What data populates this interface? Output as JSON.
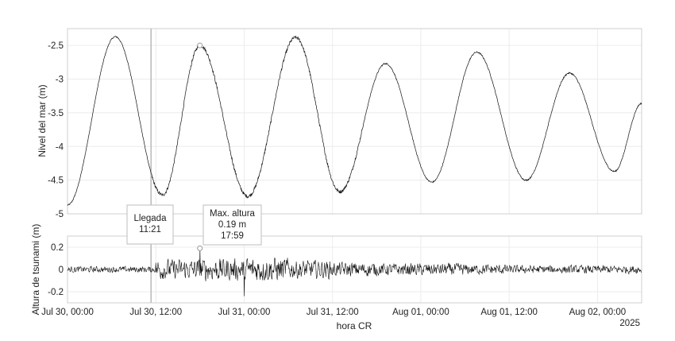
{
  "chart_data": [
    {
      "type": "line",
      "panel": "top",
      "ylabel": "Nivel del mar (m)",
      "ylim": [
        -5,
        -2.25
      ],
      "yticks": [
        "-2.5",
        "-3",
        "-3.5",
        "-4",
        "-4.5",
        "-5"
      ],
      "ytick_values": [
        -2.5,
        -3,
        -3.5,
        -4,
        -4.5,
        -5
      ],
      "grid": true,
      "line_color": "#000000",
      "series_note_points": "tide extrema (hours since Jul 30 00:00 are computed in script from these datetimes)",
      "series": [
        {
          "x": [
            "2025-07-30 00:00",
            "2025-07-30 06:30",
            "2025-07-30 12:54",
            "2025-07-30 18:00",
            "2025-07-31 00:30",
            "2025-07-31 07:00",
            "2025-07-31 13:00",
            "2025-07-31 19:12",
            "2025-08-01 01:30",
            "2025-08-01 07:36",
            "2025-08-01 14:18",
            "2025-08-01 20:12",
            "2025-08-02 02:18",
            "2025-08-02 06:00"
          ],
          "y": [
            -4.87,
            -2.37,
            -4.72,
            -2.5,
            -4.74,
            -2.38,
            -4.67,
            -2.77,
            -4.53,
            -2.6,
            -4.5,
            -2.91,
            -4.37,
            -3.36
          ]
        }
      ],
      "markers": [
        {
          "x": "2025-07-30 17:59",
          "y": -2.5,
          "shape": "circle"
        }
      ]
    },
    {
      "type": "line",
      "panel": "bottom",
      "ylabel": "Altura de tsunami (m)",
      "xlabel": "hora CR",
      "ylim": [
        -0.3,
        0.3
      ],
      "yticks": [
        "0.2",
        "0",
        "-0.2"
      ],
      "ytick_values": [
        0.2,
        0,
        -0.2
      ],
      "xlim": [
        "2025-07-30 00:00",
        "2025-08-02 06:00"
      ],
      "xticks": [
        "Jul 30, 00:00",
        "Jul 30, 12:00",
        "Jul 31, 00:00",
        "Jul 31, 12:00",
        "Aug 01, 00:00",
        "Aug 01, 12:00",
        "Aug 02, 00:00"
      ],
      "xtick_values": [
        "2025-07-30 00:00",
        "2025-07-30 12:00",
        "2025-07-31 00:00",
        "2025-07-31 12:00",
        "2025-08-01 00:00",
        "2025-08-01 12:00",
        "2025-08-02 00:00"
      ],
      "year_label": "2025",
      "grid": true,
      "line_color": "#000000",
      "amplitude_by_6h": [
        0.03,
        0.03,
        0.1,
        0.11,
        0.12,
        0.09,
        0.07,
        0.06,
        0.06,
        0.05,
        0.04,
        0.04,
        0.04,
        0.04
      ],
      "extremes": [
        {
          "x": "2025-07-30 17:59",
          "y": 0.19
        },
        {
          "x": "2025-07-31 00:00",
          "y": -0.24
        }
      ],
      "markers": [
        {
          "x": "2025-07-30 17:59",
          "y": 0.19,
          "shape": "circle"
        }
      ]
    }
  ],
  "annotations": {
    "arrival": {
      "title": "Llegada",
      "time": "11:21",
      "x": "2025-07-30 11:21"
    },
    "max": {
      "title": "Max. altura",
      "value": "0.19 m",
      "time": "17:59",
      "x": "2025-07-30 17:59"
    }
  }
}
